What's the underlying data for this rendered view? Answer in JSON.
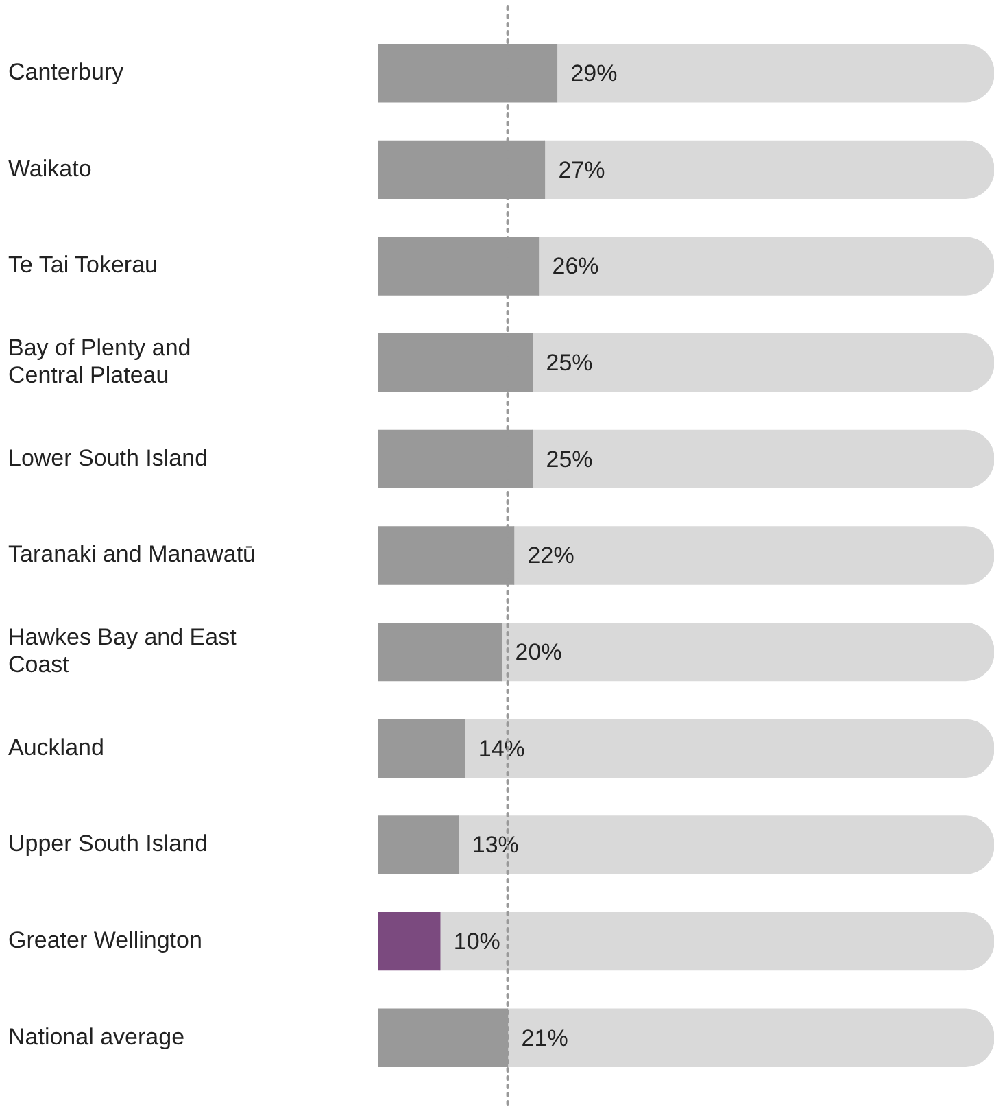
{
  "chart_data": {
    "type": "bar",
    "orientation": "horizontal",
    "categories": [
      "Canterbury",
      "Waikato",
      "Te Tai Tokerau",
      "Bay of Plenty and Central Plateau",
      "Lower South Island",
      "Taranaki and Manawatū",
      "Hawkes Bay and East Coast",
      "Auckland",
      "Upper South Island",
      "Greater Wellington",
      "National average"
    ],
    "series": [
      {
        "colors": [
          "#999999",
          "#999999",
          "#999999",
          "#999999",
          "#999999",
          "#999999",
          "#999999",
          "#999999",
          "#999999",
          "#7b4a7f",
          "#999999"
        ],
        "values": [
          29,
          27,
          26,
          25,
          25,
          22,
          20,
          14,
          13,
          10,
          21
        ],
        "value_labels": [
          "29%",
          "27%",
          "26%",
          "25%",
          "25%",
          "22%",
          "20%",
          "14%",
          "13%",
          "10%",
          "21%"
        ]
      },
      {
        "color": "#d9d9d9",
        "values": [
          71,
          73,
          74,
          75,
          75,
          78,
          80,
          86,
          87,
          90,
          79
        ]
      }
    ],
    "stacked": true,
    "xlim": [
      0,
      100
    ],
    "tick_labels": "y",
    "legend": false,
    "ref_lines": [
      {
        "axis": "x",
        "value": 21,
        "color": "#999999",
        "line_style": "dotted"
      }
    ]
  }
}
